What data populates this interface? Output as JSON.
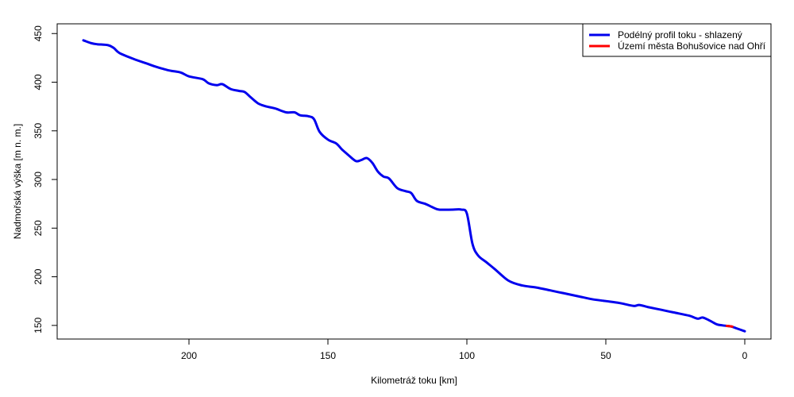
{
  "chart_data": {
    "type": "line",
    "title": "",
    "xlabel": "Kilometráž toku [km]",
    "ylabel": "Nadmořská výška [m n. m.]",
    "xlim": [
      0,
      240
    ],
    "x_reversed": true,
    "ylim": [
      136,
      460
    ],
    "xticks": [
      200,
      150,
      100,
      50,
      0
    ],
    "yticks": [
      150,
      200,
      250,
      300,
      350,
      400,
      450
    ],
    "grid": false,
    "legend_position": "top-right",
    "series": [
      {
        "name": "Podélný profil toku  - shlazený",
        "color": "#0000ee",
        "x": [
          238,
          235,
          233,
          229,
          227,
          225,
          220,
          215,
          212,
          207,
          203,
          200,
          195,
          193,
          190,
          188,
          185,
          182,
          180,
          178,
          175,
          172,
          169,
          165,
          162,
          160,
          157,
          155,
          153,
          150,
          147,
          145,
          143,
          140,
          138,
          136,
          134,
          132,
          130,
          128,
          125,
          122,
          120,
          118,
          115,
          112,
          110,
          105,
          102,
          100,
          98,
          96,
          93,
          90,
          85,
          80,
          75,
          70,
          65,
          60,
          55,
          50,
          45,
          40,
          38,
          35,
          30,
          25,
          20,
          17,
          15,
          12,
          10,
          8,
          5,
          3,
          0
        ],
        "y": [
          443,
          440,
          439,
          438,
          435,
          430,
          424,
          419,
          416,
          412,
          410,
          406,
          403,
          399,
          397,
          398,
          393,
          391,
          390,
          385,
          378,
          375,
          373,
          369,
          369,
          366,
          365,
          362,
          349,
          341,
          337,
          331,
          326,
          319,
          320,
          322,
          317,
          308,
          303,
          301,
          291,
          288,
          286,
          278,
          275,
          271,
          269,
          269,
          269,
          265,
          234,
          222,
          215,
          208,
          196,
          191,
          189,
          186,
          183,
          180,
          177,
          175,
          173,
          170,
          171,
          169,
          166,
          163,
          160,
          157,
          158,
          154,
          151,
          150,
          149,
          147,
          144
        ]
      },
      {
        "name": "Území města Bohušovice nad Ohří",
        "color": "#ff0000",
        "x": [
          6.5,
          5.5,
          4.5
        ],
        "y": [
          149.5,
          149.2,
          148.8
        ]
      }
    ]
  }
}
